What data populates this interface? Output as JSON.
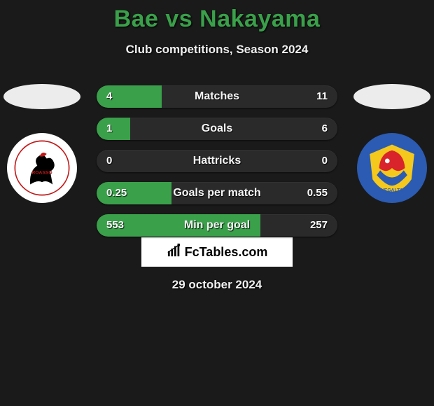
{
  "header": {
    "title": "Bae vs Nakayama",
    "subtitle": "Club competitions, Season 2024"
  },
  "players": {
    "left": {
      "name": "Bae"
    },
    "right": {
      "name": "Nakayama"
    }
  },
  "stats": {
    "bar_bg": "#2a2a2a",
    "bar_fill": "#3aa04a",
    "rows": [
      {
        "label": "Matches",
        "left": "4",
        "right": "11",
        "left_pct": 27,
        "right_pct": 0
      },
      {
        "label": "Goals",
        "left": "1",
        "right": "6",
        "left_pct": 14,
        "right_pct": 0
      },
      {
        "label": "Hattricks",
        "left": "0",
        "right": "0",
        "left_pct": 0,
        "right_pct": 0
      },
      {
        "label": "Goals per match",
        "left": "0.25",
        "right": "0.55",
        "left_pct": 31,
        "right_pct": 0
      },
      {
        "label": "Min per goal",
        "left": "553",
        "right": "257",
        "left_pct": 68,
        "right_pct": 0
      }
    ]
  },
  "brand": {
    "text": "FcTables.com"
  },
  "date": "29 october 2024",
  "colors": {
    "page_bg": "#1a1a1a",
    "title": "#3aa04a",
    "text": "#f0f0f0"
  }
}
